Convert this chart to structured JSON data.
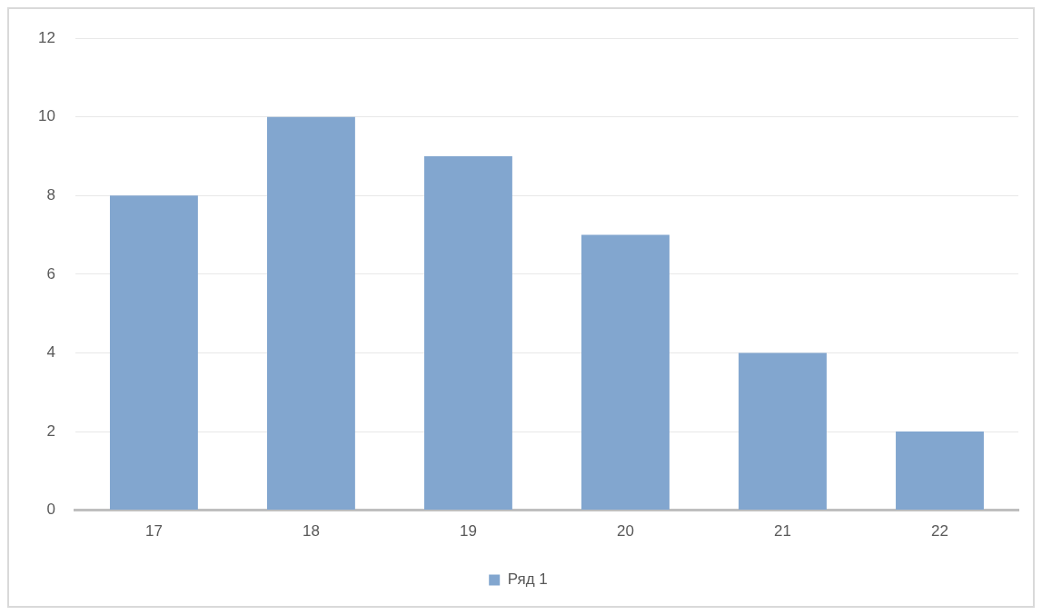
{
  "chart_data": {
    "type": "bar",
    "categories": [
      "17",
      "18",
      "19",
      "20",
      "21",
      "22"
    ],
    "series": [
      {
        "name": "Ряд 1",
        "color": "#82a6cf",
        "values": [
          8,
          10,
          9,
          7,
          4,
          2
        ]
      }
    ],
    "ylim": [
      0,
      12
    ],
    "yticks": [
      0,
      2,
      4,
      6,
      8,
      10,
      12
    ],
    "grid": "y",
    "legend": "bottom"
  }
}
